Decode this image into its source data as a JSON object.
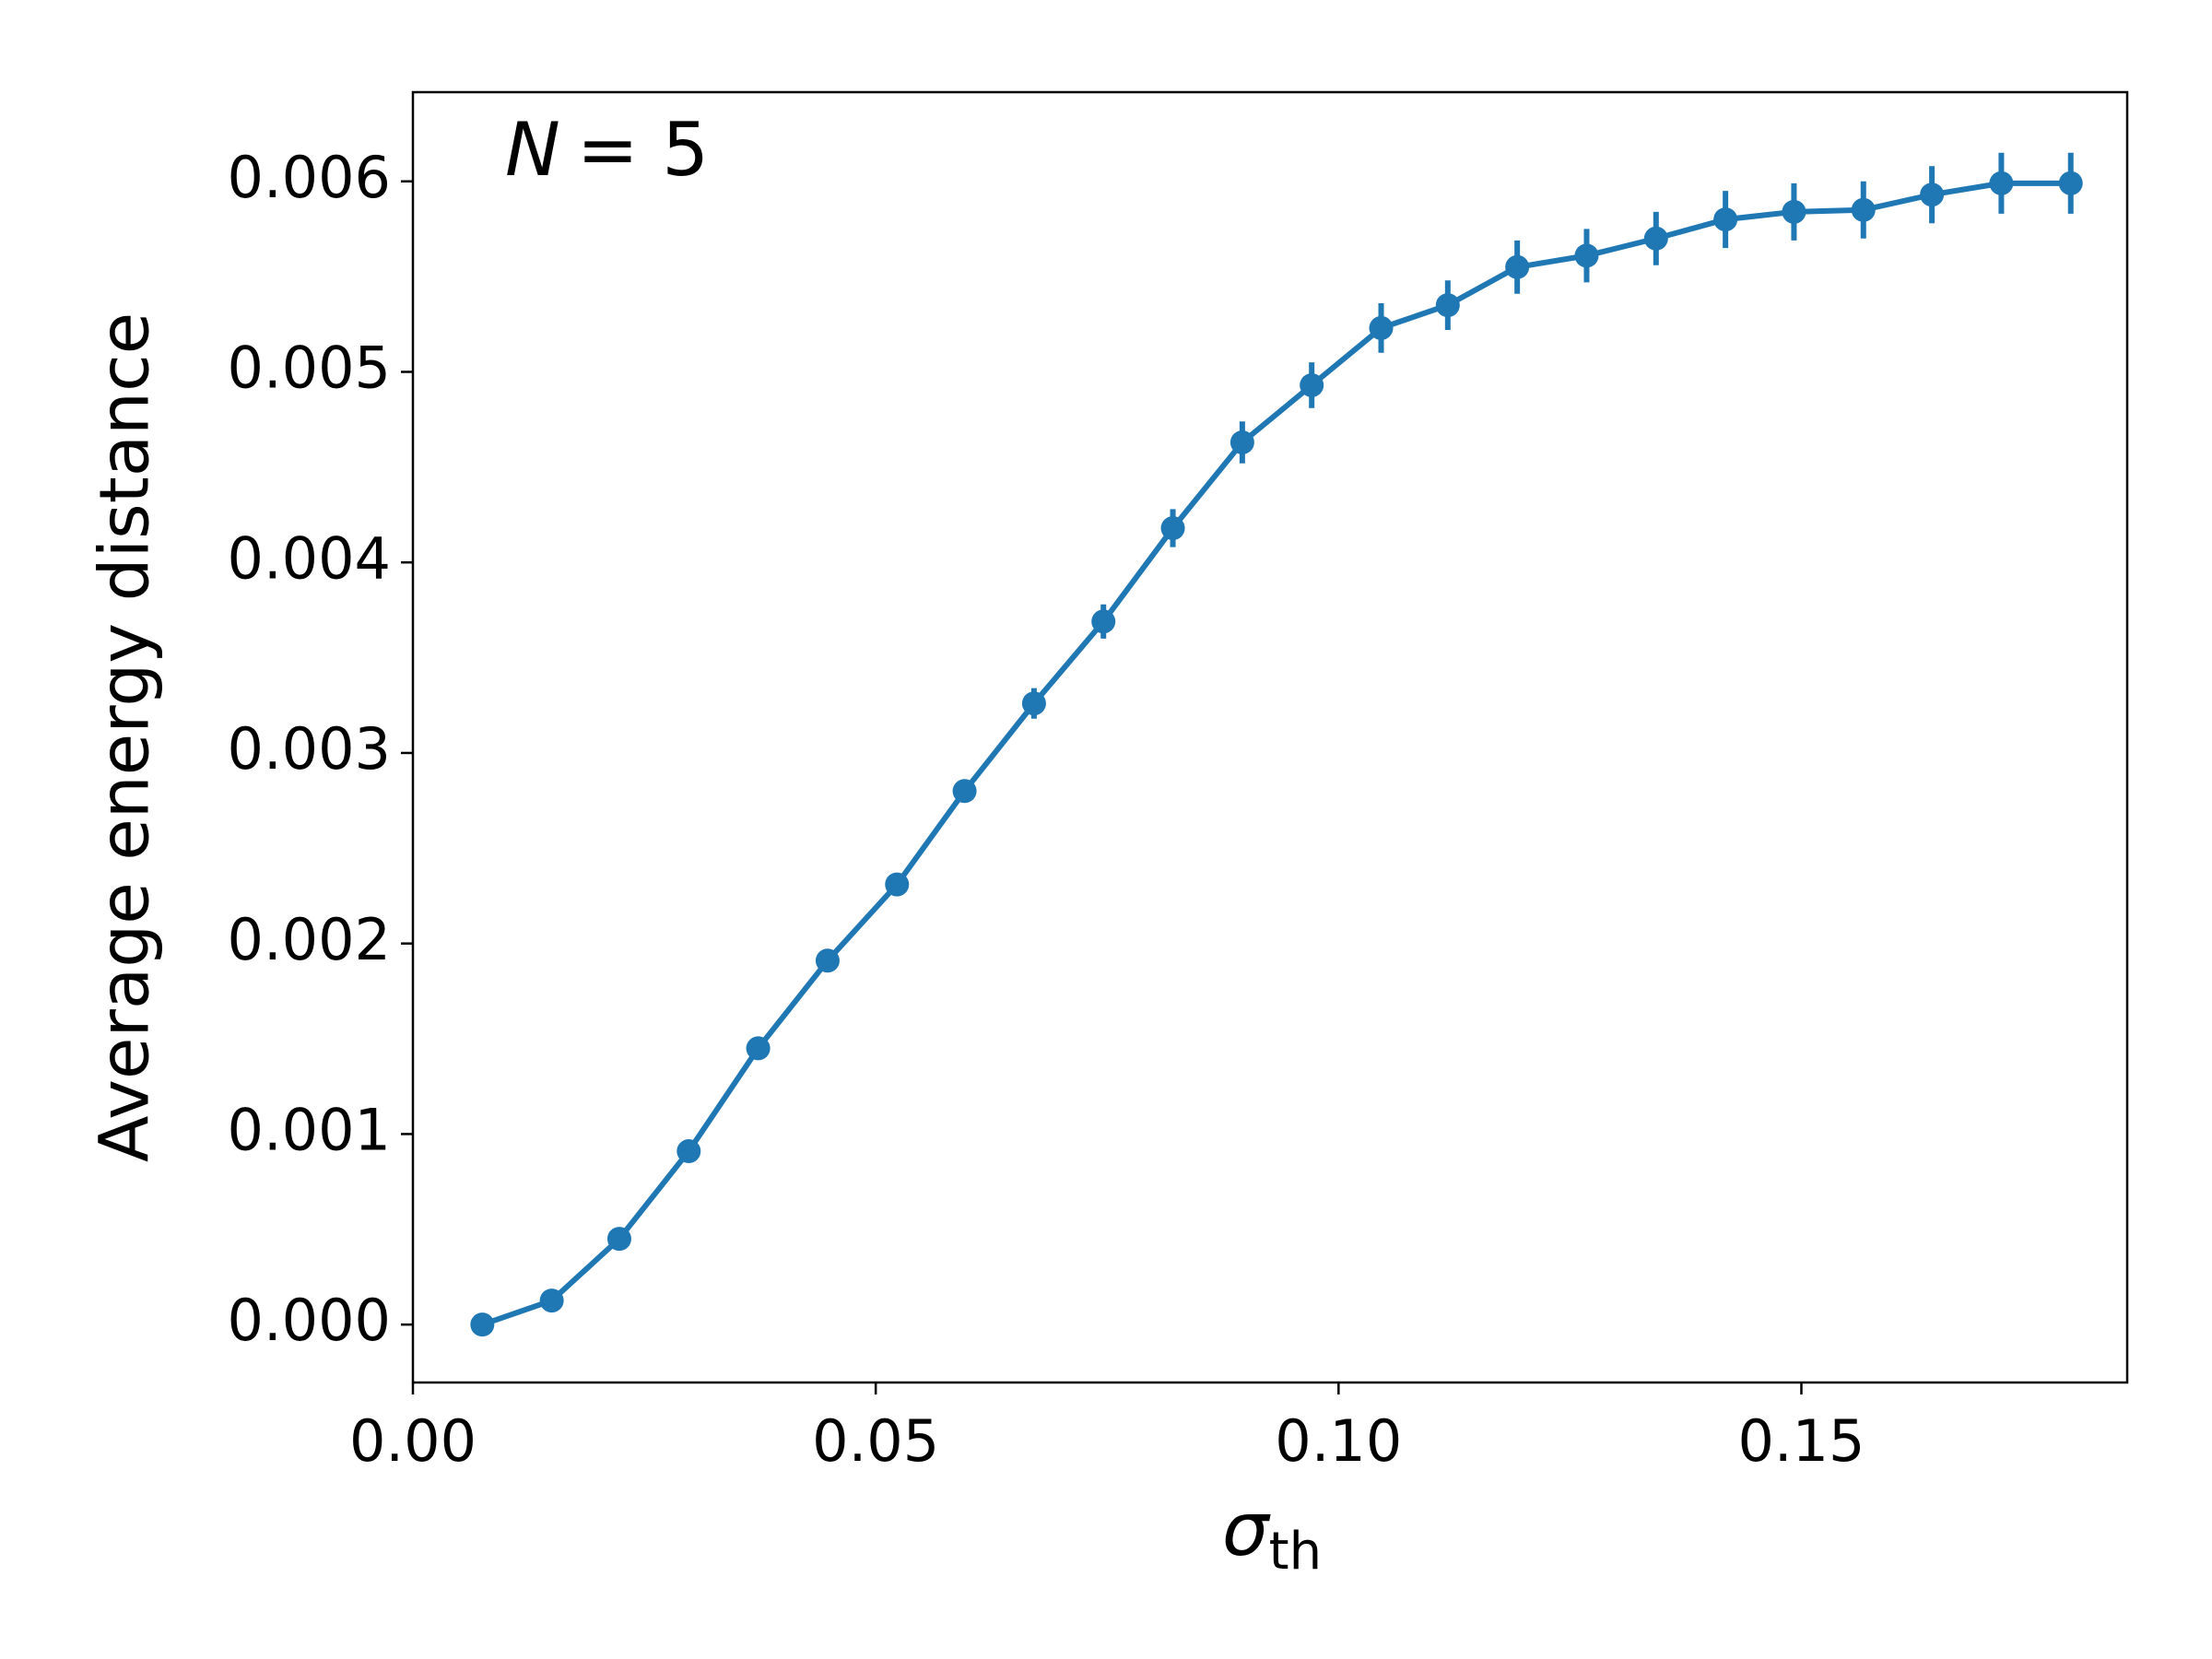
{
  "chart_data": {
    "type": "line",
    "annotation": {
      "italic": "N",
      "text": "= 5"
    },
    "x_label": {
      "symbol": "σ",
      "subscript": "th"
    },
    "y_label": "Average energy distance",
    "x": [
      0.0075,
      0.015,
      0.0223,
      0.0298,
      0.0373,
      0.0448,
      0.0523,
      0.0596,
      0.0671,
      0.0746,
      0.0821,
      0.0896,
      0.0971,
      0.1046,
      0.1118,
      0.1193,
      0.1268,
      0.1343,
      0.1418,
      0.1492,
      0.1567,
      0.1641,
      0.1716,
      0.1791
    ],
    "series": [
      {
        "color": "#1f77b4",
        "values": [
          0,
          0.000126,
          0.00045,
          0.00091,
          0.00145,
          0.00191,
          0.00231,
          0.0028,
          0.00326,
          0.00369,
          0.00418,
          0.00463,
          0.00493,
          0.00523,
          0.00535,
          0.00555,
          0.00561,
          0.0057,
          0.0058,
          0.00584,
          0.00585,
          0.00593,
          0.00599,
          0.00599
        ],
        "errors": [
          0,
          1e-05,
          2e-05,
          3e-05,
          4e-05,
          5e-05,
          5e-05,
          6e-05,
          8e-05,
          9e-05,
          0.0001,
          0.00011,
          0.00012,
          0.00013,
          0.00013,
          0.00014,
          0.00014,
          0.00014,
          0.00015,
          0.00015,
          0.00015,
          0.00015,
          0.00016,
          0.00016
        ]
      }
    ],
    "xlim": [
      0,
      0.1852
    ],
    "ylim": [
      -0.000304,
      0.006468
    ],
    "xticks": [
      {
        "value": 0,
        "label": "0.00"
      },
      0.05,
      {
        "value": 0.1,
        "label": "0.10"
      },
      0.15
    ],
    "yticks": [
      {
        "value": 0,
        "label": "0.000"
      },
      0.001,
      0.002,
      0.003,
      0.004,
      0.005,
      0.006
    ],
    "grid": false
  }
}
